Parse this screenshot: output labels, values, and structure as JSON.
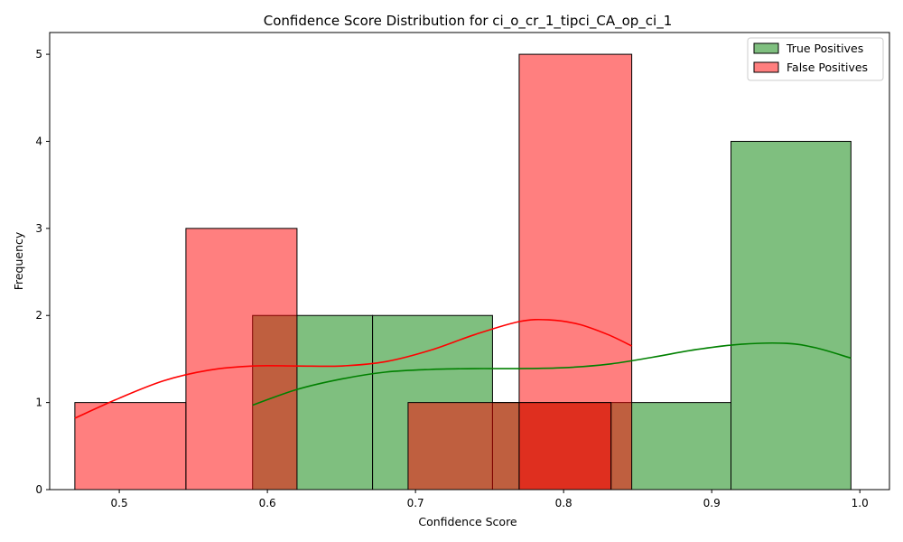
{
  "chart_data": {
    "type": "bar",
    "title": "Confidence Score Distribution for ci_o_cr_1_tipci_CA_op_ci_1",
    "xlabel": "Confidence Score",
    "ylabel": "Frequency",
    "xlim": [
      0.453,
      1.02
    ],
    "ylim": [
      0,
      5.25
    ],
    "xticks": [
      "0.5",
      "0.6",
      "0.7",
      "0.8",
      "0.9",
      "1.0"
    ],
    "yticks": [
      "0",
      "1",
      "2",
      "3",
      "4",
      "5"
    ],
    "legend_position": "top-right",
    "series": [
      {
        "name": "True Positives",
        "color": "#008000",
        "bins": [
          {
            "x0": 0.59,
            "x1": 0.671,
            "count": 2
          },
          {
            "x0": 0.671,
            "x1": 0.752,
            "count": 2
          },
          {
            "x0": 0.752,
            "x1": 0.832,
            "count": 1
          },
          {
            "x0": 0.832,
            "x1": 0.913,
            "count": 1
          },
          {
            "x0": 0.913,
            "x1": 0.994,
            "count": 4
          }
        ],
        "kde": {
          "x": [
            0.59,
            0.62,
            0.65,
            0.68,
            0.71,
            0.74,
            0.77,
            0.8,
            0.83,
            0.86,
            0.89,
            0.92,
            0.95,
            0.97,
            0.994
          ],
          "y": [
            0.97,
            1.15,
            1.27,
            1.35,
            1.38,
            1.39,
            1.39,
            1.4,
            1.44,
            1.52,
            1.61,
            1.67,
            1.68,
            1.63,
            1.51
          ]
        }
      },
      {
        "name": "False Positives",
        "color": "#ff0000",
        "bins": [
          {
            "x0": 0.47,
            "x1": 0.545,
            "count": 1
          },
          {
            "x0": 0.545,
            "x1": 0.62,
            "count": 3
          },
          {
            "x0": 0.62,
            "x1": 0.695,
            "count": 0
          },
          {
            "x0": 0.695,
            "x1": 0.77,
            "count": 1
          },
          {
            "x0": 0.77,
            "x1": 0.846,
            "count": 5
          }
        ],
        "extra_bar": {
          "x0": 0.77,
          "x1": 0.832,
          "count": 1
        },
        "kde": {
          "x": [
            0.47,
            0.5,
            0.53,
            0.56,
            0.59,
            0.62,
            0.65,
            0.68,
            0.71,
            0.74,
            0.77,
            0.79,
            0.81,
            0.83,
            0.846
          ],
          "y": [
            0.82,
            1.05,
            1.25,
            1.37,
            1.42,
            1.42,
            1.42,
            1.47,
            1.6,
            1.78,
            1.93,
            1.95,
            1.9,
            1.78,
            1.65
          ]
        }
      }
    ]
  }
}
